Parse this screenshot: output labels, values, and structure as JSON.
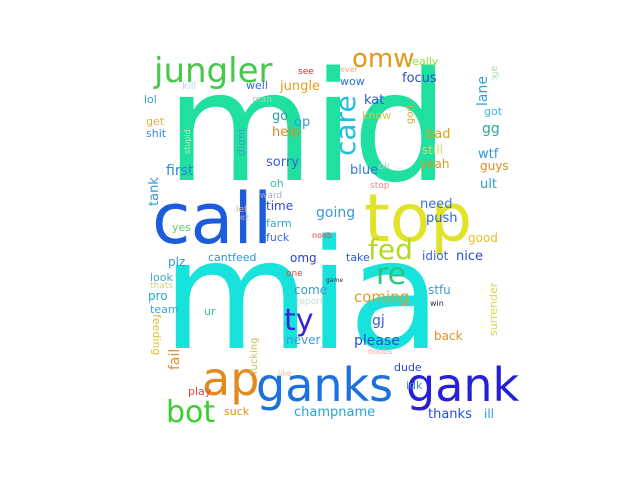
{
  "words": [
    {
      "text": "mid",
      "color": "#1fe0a0"
    },
    {
      "text": "mia",
      "color": "#17e3dc"
    },
    {
      "text": "call",
      "color": "#1c5bdc"
    },
    {
      "text": "top",
      "color": "#e1e32a"
    },
    {
      "text": "ganks",
      "color": "#1d71dc"
    },
    {
      "text": "gank",
      "color": "#2520d8"
    },
    {
      "text": "ap",
      "color": "#e38a1e"
    },
    {
      "text": "bot",
      "color": "#3ad02c"
    },
    {
      "text": "jungler",
      "color": "#47c84a"
    },
    {
      "text": "omw",
      "color": "#e09a1c"
    },
    {
      "text": "care",
      "color": "#1ec0de"
    },
    {
      "text": "fed",
      "color": "#b4d920"
    },
    {
      "text": "re",
      "color": "#26c87a"
    },
    {
      "text": "ty",
      "color": "#3a24d6"
    },
    {
      "text": "coming",
      "color": "#e29a22"
    },
    {
      "text": "please",
      "color": "#1a52d8"
    },
    {
      "text": "champname",
      "color": "#26a4d8"
    },
    {
      "text": "thanks",
      "color": "#2250d6"
    },
    {
      "text": "jungle",
      "color": "#e0a020"
    },
    {
      "text": "wow",
      "color": "#2670d8"
    },
    {
      "text": "focus",
      "color": "#2a4ed6"
    },
    {
      "text": "really",
      "color": "#92d83a"
    },
    {
      "text": "lane",
      "color": "#26a2d8"
    },
    {
      "text": "afk",
      "color": "#a8d8a8"
    },
    {
      "text": "kat",
      "color": "#2a58d6"
    },
    {
      "text": "know",
      "color": "#d8c84a"
    },
    {
      "text": "got",
      "color": "#38b8d4"
    },
    {
      "text": "gg",
      "color": "#2aa8a0"
    },
    {
      "text": "god",
      "color": "#d8a82a"
    },
    {
      "text": "bad",
      "color": "#e0a01c"
    },
    {
      "text": "still",
      "color": "#d8d86a"
    },
    {
      "text": "wtf",
      "color": "#2a9ad8"
    },
    {
      "text": "guys",
      "color": "#e08c1c"
    },
    {
      "text": "yeah",
      "color": "#e0961c"
    },
    {
      "text": "ult",
      "color": "#26a2c8"
    },
    {
      "text": "stop",
      "color": "#f08c8c"
    },
    {
      "text": "ok",
      "color": "#b8d4c8"
    },
    {
      "text": "blue",
      "color": "#3276d8"
    },
    {
      "text": "help",
      "color": "#e08a1e"
    },
    {
      "text": "go",
      "color": "#2aa4a0"
    },
    {
      "text": "op",
      "color": "#2aa2d8"
    },
    {
      "text": "sorry",
      "color": "#3a60d8"
    },
    {
      "text": "oh",
      "color": "#38c0a8"
    },
    {
      "text": "well",
      "color": "#3468d4"
    },
    {
      "text": "man",
      "color": "#f0b0b0"
    },
    {
      "text": "see",
      "color": "#e02a2a"
    },
    {
      "text": "ever",
      "color": "#f0b080"
    },
    {
      "text": "kill",
      "color": "#c0d4e0"
    },
    {
      "text": "lol",
      "color": "#3a9ad4"
    },
    {
      "text": "get",
      "color": "#e0b040"
    },
    {
      "text": "shit",
      "color": "#3a8ad8"
    },
    {
      "text": "stupid",
      "color": "#c8e8b0"
    },
    {
      "text": "didnt",
      "color": "#3aa8c8"
    },
    {
      "text": "first",
      "color": "#2a8ad8"
    },
    {
      "text": "going",
      "color": "#3a9ad8"
    },
    {
      "text": "need",
      "color": "#3a70d4"
    },
    {
      "text": "push",
      "color": "#2a64d4"
    },
    {
      "text": "tank",
      "color": "#2a9ad8"
    },
    {
      "text": "time",
      "color": "#3446d4"
    },
    {
      "text": "ward",
      "color": "#a8a8c8"
    },
    {
      "text": "let",
      "color": "#e0b070"
    },
    {
      "text": "ez",
      "color": "#a8a8d0"
    },
    {
      "text": "farm",
      "color": "#38a8c8"
    },
    {
      "text": "yes",
      "color": "#68c868"
    },
    {
      "text": "fuck",
      "color": "#3a68d4"
    },
    {
      "text": "noob",
      "color": "#e04040"
    },
    {
      "text": "good",
      "color": "#e0c030"
    },
    {
      "text": "idiot",
      "color": "#3a60d4"
    },
    {
      "text": "nice",
      "color": "#2a4ad4"
    },
    {
      "text": "plz",
      "color": "#2a9ad8"
    },
    {
      "text": "cantfeed",
      "color": "#2a9ad8"
    },
    {
      "text": "omg",
      "color": "#2a40d4"
    },
    {
      "text": "take",
      "color": "#2a5ad4"
    },
    {
      "text": "one",
      "color": "#e04040"
    },
    {
      "text": "look",
      "color": "#3aaac8"
    },
    {
      "text": "thats",
      "color": "#d8d080"
    },
    {
      "text": "team",
      "color": "#3aa8c8"
    },
    {
      "text": "game",
      "color": "#2a2a4a"
    },
    {
      "text": "come",
      "color": "#3a9ad4"
    },
    {
      "text": "report",
      "color": "#c8d8d8"
    },
    {
      "text": "stfu",
      "color": "#3a9ad4"
    },
    {
      "text": "win",
      "color": "#2a2a4a"
    },
    {
      "text": "surrender",
      "color": "#d8d84a"
    },
    {
      "text": "pro",
      "color": "#2aa8b8"
    },
    {
      "text": "gj",
      "color": "#3a60d4"
    },
    {
      "text": "never",
      "color": "#3a9ad4"
    },
    {
      "text": "ur",
      "color": "#3ab8a8"
    },
    {
      "text": "back",
      "color": "#e09020"
    },
    {
      "text": "feeding",
      "color": "#e0c030"
    },
    {
      "text": "fail",
      "color": "#e09020"
    },
    {
      "text": "fucking",
      "color": "#d8b850"
    },
    {
      "text": "noobs",
      "color": "#f0a0a0"
    },
    {
      "text": "dude",
      "color": "#2a44d4"
    },
    {
      "text": "idk",
      "color": "#3a8ad8"
    },
    {
      "text": "play",
      "color": "#e04040"
    },
    {
      "text": "like",
      "color": "#f0c0a0"
    },
    {
      "text": "suck",
      "color": "#e09020"
    },
    {
      "text": "ill",
      "color": "#2a9ad8"
    },
    {
      "text": "ap",
      "color": "#e08a1e"
    }
  ]
}
